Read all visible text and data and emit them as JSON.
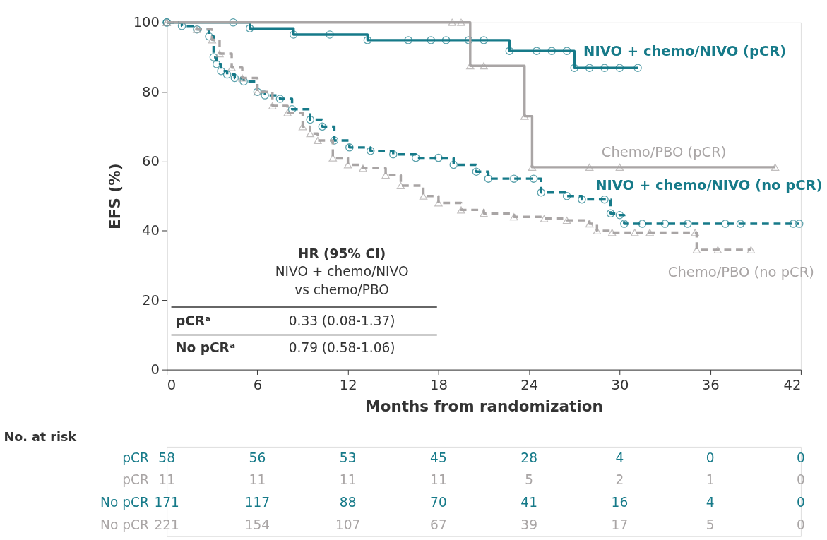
{
  "chart_data": {
    "type": "step",
    "xlabel": "Months from randomization",
    "ylabel": "EFS (%)",
    "xlim": [
      0,
      42
    ],
    "xticks": [
      0,
      6,
      12,
      18,
      24,
      30,
      36,
      42
    ],
    "ylim": [
      0,
      100
    ],
    "yticks": [
      0,
      20,
      40,
      60,
      80,
      100
    ],
    "grid": false,
    "legend": false,
    "annotations": [
      "HR (95% CI)",
      "NIVO + chemo/NIVO",
      "vs chemo/PBO",
      "pCRᵃ",
      "0.33 (0.08-1.37)",
      "No pCRᵃ",
      "0.79 (0.58-1.06)",
      "No. at risk",
      "pCR",
      "58",
      "56",
      "53",
      "45",
      "28",
      "4",
      "0",
      "0",
      "pCR",
      "11",
      "11",
      "11",
      "11",
      "5",
      "2",
      "1",
      "0",
      "No pCR",
      "171",
      "117",
      "88",
      "70",
      "41",
      "16",
      "4",
      "0",
      "No pCR",
      "221",
      "154",
      "107",
      "67",
      "39",
      "17",
      "5",
      "0"
    ],
    "series": [
      {
        "name": "NIVO + chemo/NIVO (pCR)",
        "color": "#167a89",
        "line_style": "solid",
        "marker": "circle",
        "x": [
          0,
          4.4,
          5.5,
          8.4,
          10.8,
          13.3,
          16,
          17.5,
          18.5,
          20,
          21,
          22.7,
          24.5,
          25.5,
          26.5,
          27.0,
          28,
          29,
          30,
          31.2
        ],
        "values": [
          100,
          100,
          98.3,
          96.5,
          96.5,
          94.9,
          94.9,
          94.9,
          94.9,
          94.9,
          94.9,
          91.8,
          91.8,
          91.8,
          91.8,
          86.9,
          86.9,
          86.9,
          86.9,
          86.9
        ]
      },
      {
        "name": "Chemo/PBO (pCR)",
        "color": "#a9a5a5",
        "line_style": "solid",
        "marker": "triangle",
        "x": [
          0,
          18.9,
          19.5,
          20.1,
          21.0,
          23.7,
          24.2,
          28.0,
          30.0,
          40.3
        ],
        "values": [
          100,
          100,
          100,
          87.5,
          87.5,
          73.0,
          58.3,
          58.3,
          58.3,
          58.3
        ]
      },
      {
        "name": "NIVO + chemo/NIVO (no pCR)",
        "color": "#167a89",
        "line_style": "dashed",
        "marker": "circle",
        "x": [
          0,
          1,
          2,
          2.8,
          3.1,
          3.3,
          3.6,
          4,
          4.5,
          5.1,
          6,
          6.5,
          7.5,
          8.3,
          9.5,
          10.3,
          11.1,
          12.1,
          13.5,
          15,
          16.5,
          18,
          19,
          20.5,
          21.3,
          23,
          24.3,
          24.8,
          26.5,
          27.5,
          29,
          29.4,
          30,
          30.3,
          31.5,
          33,
          34.5,
          37,
          38,
          41.5,
          41.9
        ],
        "values": [
          100,
          99,
          98,
          96,
          90,
          88,
          86,
          85,
          84,
          83,
          80,
          79,
          78,
          75,
          72,
          70,
          66,
          64,
          63,
          62,
          61,
          61,
          59,
          57,
          55,
          55,
          55,
          51,
          50,
          49,
          49,
          45,
          44.5,
          42,
          42,
          42,
          42,
          42,
          42,
          42,
          42
        ]
      },
      {
        "name": "Chemo/PBO (no pCR)",
        "color": "#a9a5a5",
        "line_style": "dashed",
        "marker": "triangle",
        "x": [
          0,
          2,
          3,
          3.5,
          4.3,
          5,
          6,
          7,
          8,
          9,
          9.5,
          10,
          11,
          12,
          13,
          14.5,
          15.5,
          17,
          18,
          19.5,
          21,
          23,
          25,
          26.5,
          28,
          28.5,
          29.5,
          31,
          32,
          35,
          35.1,
          36.5,
          38.7
        ],
        "values": [
          100,
          98,
          95,
          91,
          87,
          84,
          80,
          76,
          74,
          70,
          68,
          66,
          61,
          59,
          58,
          56,
          53,
          50,
          48,
          46,
          45,
          44,
          43.5,
          43,
          42,
          40,
          39.5,
          39.5,
          39.5,
          39.5,
          34.5,
          34.5,
          34.5
        ]
      }
    ]
  }
}
